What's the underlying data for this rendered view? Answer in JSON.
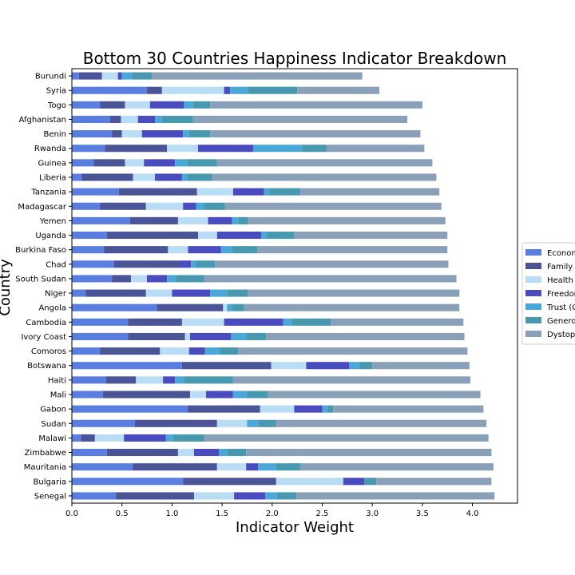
{
  "chart_data": {
    "type": "bar",
    "orientation": "horizontal",
    "stacked": true,
    "title": "Bottom 30 Countries Happiness Indicator Breakdown",
    "xlabel": "Indicator Weight",
    "ylabel": "Country",
    "xlim": [
      0,
      4.45
    ],
    "xticks": [
      "0.0",
      "0.5",
      "1.0",
      "1.5",
      "2.0",
      "2.5",
      "3.0",
      "3.5",
      "4.0"
    ],
    "grid": false,
    "legend_position": "right",
    "categories": [
      "Burundi",
      "Syria",
      "Togo",
      "Afghanistan",
      "Benin",
      "Rwanda",
      "Guinea",
      "Liberia",
      "Tanzania",
      "Madagascar",
      "Yemen",
      "Uganda",
      "Burkina Faso",
      "Chad",
      "South Sudan",
      "Niger",
      "Angola",
      "Cambodia",
      "Ivory Coast",
      "Comoros",
      "Botswana",
      "Haiti",
      "Mali",
      "Gabon",
      "Sudan",
      "Malawi",
      "Zimbabwe",
      "Mauritania",
      "Bulgaria",
      "Senegal"
    ],
    "series": [
      {
        "name": "Econom",
        "color": "#5a7ee0",
        "values": [
          0.07,
          0.75,
          0.28,
          0.38,
          0.4,
          0.33,
          0.22,
          0.1,
          0.47,
          0.28,
          0.58,
          0.35,
          0.32,
          0.42,
          0.4,
          0.14,
          0.85,
          0.56,
          0.56,
          0.28,
          1.1,
          0.34,
          0.31,
          1.16,
          0.63,
          0.09,
          0.35,
          0.61,
          1.11,
          0.44
        ]
      },
      {
        "name": "Family",
        "color": "#4a5496",
        "values": [
          0.23,
          0.15,
          0.25,
          0.11,
          0.1,
          0.62,
          0.31,
          0.51,
          0.78,
          0.46,
          0.48,
          0.91,
          0.64,
          0.64,
          0.19,
          0.6,
          0.66,
          0.54,
          0.57,
          0.6,
          0.89,
          0.3,
          0.87,
          0.72,
          0.82,
          0.14,
          0.71,
          0.84,
          0.93,
          0.78
        ]
      },
      {
        "name": "Health",
        "color": "#b8ddf5",
        "values": [
          0.16,
          0.62,
          0.25,
          0.17,
          0.2,
          0.31,
          0.19,
          0.22,
          0.36,
          0.37,
          0.3,
          0.19,
          0.2,
          0.0,
          0.16,
          0.26,
          0.04,
          0.42,
          0.05,
          0.29,
          0.35,
          0.27,
          0.16,
          0.34,
          0.3,
          0.29,
          0.16,
          0.29,
          0.67,
          0.4
        ]
      },
      {
        "name": "Freedom",
        "color": "#4b4bc0",
        "values": [
          0.04,
          0.06,
          0.34,
          0.17,
          0.41,
          0.55,
          0.31,
          0.27,
          0.31,
          0.13,
          0.24,
          0.44,
          0.33,
          0.13,
          0.2,
          0.38,
          0.0,
          0.59,
          0.41,
          0.16,
          0.43,
          0.12,
          0.27,
          0.28,
          0.0,
          0.42,
          0.25,
          0.12,
          0.21,
          0.31
        ]
      },
      {
        "name": "Trust (C",
        "color": "#4aa8d8",
        "values": [
          0.1,
          0.18,
          0.09,
          0.07,
          0.06,
          0.49,
          0.12,
          0.05,
          0.05,
          0.08,
          0.06,
          0.06,
          0.11,
          0.05,
          0.09,
          0.17,
          0.05,
          0.08,
          0.15,
          0.15,
          0.1,
          0.09,
          0.14,
          0.05,
          0.11,
          0.07,
          0.08,
          0.18,
          0.0,
          0.12
        ]
      },
      {
        "name": "Generos",
        "color": "#4898b0",
        "values": [
          0.2,
          0.49,
          0.17,
          0.31,
          0.21,
          0.24,
          0.3,
          0.25,
          0.31,
          0.21,
          0.1,
          0.27,
          0.25,
          0.19,
          0.28,
          0.21,
          0.12,
          0.4,
          0.2,
          0.18,
          0.13,
          0.49,
          0.21,
          0.06,
          0.18,
          0.31,
          0.19,
          0.24,
          0.12,
          0.19
        ]
      },
      {
        "name": "Dystop",
        "color": "#8aa0b8",
        "values": [
          2.1,
          0.82,
          2.12,
          2.14,
          2.1,
          0.98,
          2.15,
          2.24,
          1.39,
          2.16,
          1.97,
          1.53,
          1.9,
          2.33,
          2.52,
          2.11,
          2.15,
          1.32,
          1.98,
          2.29,
          0.97,
          2.37,
          2.12,
          1.5,
          2.1,
          2.84,
          2.45,
          1.93,
          1.15,
          1.98
        ]
      }
    ]
  }
}
